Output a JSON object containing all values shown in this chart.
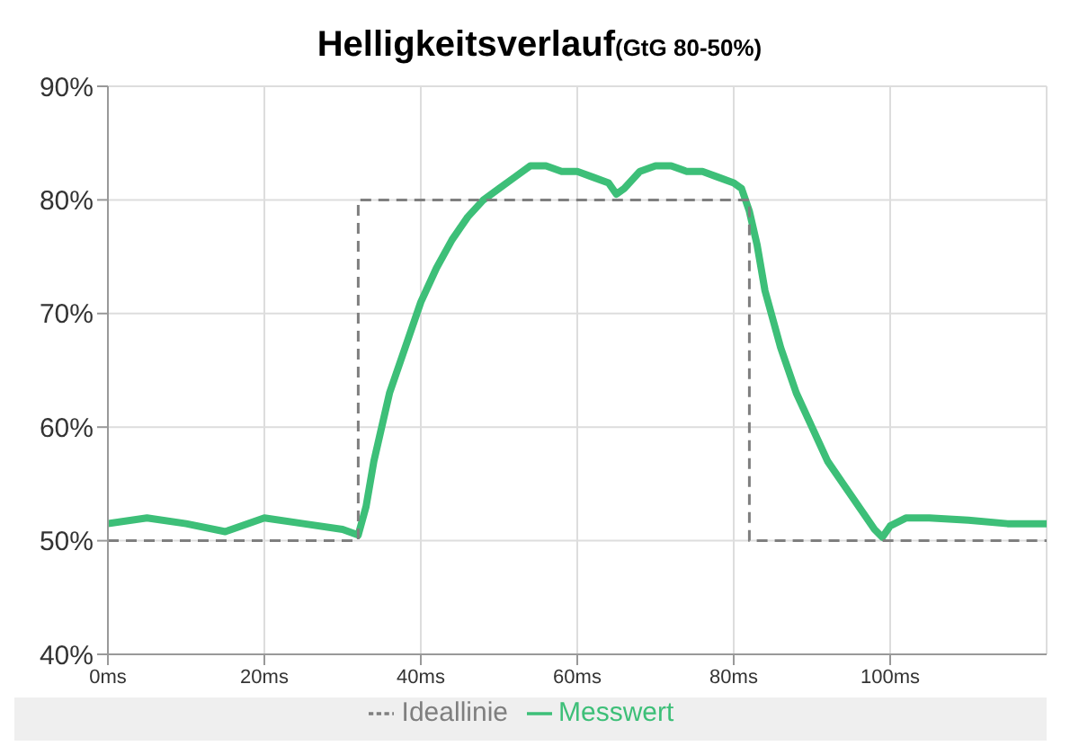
{
  "chart_data": {
    "type": "line",
    "title": "Helligkeitsverlauf",
    "subtitle": "(GtG 80-50%)",
    "xlim": [
      0,
      120
    ],
    "xticks": [
      {
        "value": 0,
        "label": "0ms"
      },
      {
        "value": 20,
        "label": "20ms"
      },
      {
        "value": 40,
        "label": "40ms"
      },
      {
        "value": 60,
        "label": "60ms"
      },
      {
        "value": 80,
        "label": "80ms"
      },
      {
        "value": 100,
        "label": "100ms"
      }
    ],
    "ylim": [
      40,
      90
    ],
    "yticks": [
      {
        "value": 40,
        "label": "40%"
      },
      {
        "value": 50,
        "label": "50%"
      },
      {
        "value": 60,
        "label": "60%"
      },
      {
        "value": 70,
        "label": "70%"
      },
      {
        "value": 80,
        "label": "80%"
      },
      {
        "value": 90,
        "label": "90%"
      }
    ],
    "grid": true,
    "legend": "bottom",
    "marker": "none",
    "series": [
      {
        "name": "Messwert",
        "color": "#3dbf78",
        "line_style": "solid",
        "x": [
          0,
          5,
          10,
          15,
          20,
          25,
          30,
          32,
          33,
          34,
          35,
          36,
          38,
          40,
          42,
          44,
          46,
          48,
          50,
          52,
          54,
          56,
          58,
          60,
          62,
          64,
          65,
          66,
          68,
          70,
          72,
          74,
          76,
          78,
          80,
          81,
          82,
          83,
          84,
          86,
          88,
          90,
          92,
          94,
          96,
          98,
          99,
          100,
          102,
          105,
          110,
          115,
          120
        ],
        "values": [
          51.5,
          52,
          51.5,
          50.8,
          52,
          51.5,
          51,
          50.5,
          53,
          57,
          60,
          63,
          67,
          71,
          74,
          76.5,
          78.5,
          80,
          81,
          82,
          83,
          83,
          82.5,
          82.5,
          82,
          81.5,
          80.5,
          81,
          82.5,
          83,
          83,
          82.5,
          82.5,
          82,
          81.5,
          81,
          79,
          76,
          72,
          67,
          63,
          60,
          57,
          55,
          53,
          51,
          50.3,
          51.3,
          52,
          52,
          51.8,
          51.5,
          51.5
        ]
      },
      {
        "name": "Ideallinie",
        "color": "#7f7f7f",
        "line_style": "dashed",
        "x": [
          0,
          32,
          32,
          82,
          82,
          120
        ],
        "values": [
          50,
          50,
          80,
          80,
          50,
          50
        ]
      }
    ]
  }
}
